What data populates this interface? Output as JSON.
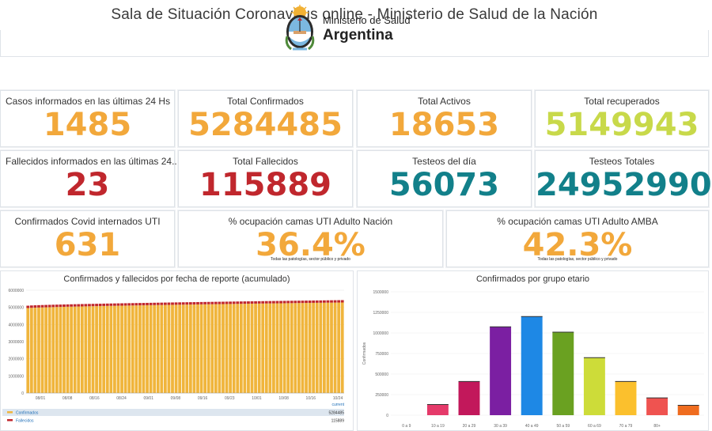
{
  "page": {
    "title": "Sala de Situación Coronavirus online - Ministerio de Salud de la Nación"
  },
  "logo": {
    "line1": "Ministerio de Salud",
    "line2": "Argentina"
  },
  "colors": {
    "orange": "#f2a83b",
    "lime": "#c8d94a",
    "red": "#c0272d",
    "teal": "#12808a",
    "chart_orange": "#f0b53c",
    "chart_red": "#c0272d"
  },
  "kpis": [
    {
      "label": "Casos informados en las últimas 24 Hs",
      "value": "1485",
      "color": "#f2a83b"
    },
    {
      "label": "Total Confirmados",
      "value": "5284485",
      "color": "#f2a83b"
    },
    {
      "label": "Total Activos",
      "value": "18653",
      "color": "#f2a83b"
    },
    {
      "label": "Total recuperados",
      "value": "5149943",
      "color": "#c8d94a"
    },
    {
      "label": "Fallecidos informados en las últimas 24...",
      "value": "23",
      "color": "#c0272d"
    },
    {
      "label": "Total Fallecidos",
      "value": "115889",
      "color": "#c0272d"
    },
    {
      "label": "Testeos del día",
      "value": "56073",
      "color": "#12808a"
    },
    {
      "label": "Testeos Totales",
      "value": "24952990",
      "color": "#12808a"
    },
    {
      "label": "Confirmados Covid internados UTI",
      "value": "631",
      "color": "#f2a83b"
    },
    {
      "label": "% ocupación camas UTI Adulto Nación",
      "value": "36.4%",
      "color": "#f2a83b",
      "note": "Todas las patologías, sector público y privado"
    },
    {
      "label": "% ocupación camas UTI Adulto AMBA",
      "value": "42.3%",
      "color": "#f2a83b",
      "note": "Todas las patologías, sector público y privado"
    }
  ],
  "chart_data": [
    {
      "type": "bar",
      "title": "Confirmados y fallecidos por fecha de reporte (acumulado)",
      "ylim": [
        0,
        6000000
      ],
      "yticks": [
        "0",
        "1000000",
        "2000000",
        "3000000",
        "4000000",
        "5000000",
        "6000000"
      ],
      "xticks": [
        "08/01",
        "08/08",
        "08/16",
        "08/24",
        "09/01",
        "09/08",
        "09/16",
        "09/23",
        "10/01",
        "10/08",
        "10/16",
        "10/24"
      ],
      "current_label": "current",
      "series": [
        {
          "name": "Confirmados",
          "color": "#f0b53c",
          "current": "5284485",
          "start": 4960000,
          "end": 5284485
        },
        {
          "name": "Fallecidos",
          "color": "#c0272d",
          "current": "115889",
          "start": 106000,
          "end": 115889
        }
      ]
    },
    {
      "type": "bar",
      "title": "Confirmados por grupo etario",
      "ylabel": "Confirmados",
      "ylim": [
        0,
        1500000
      ],
      "yticks": [
        "0",
        "250000",
        "500000",
        "750000",
        "1000000",
        "1250000",
        "1500000"
      ],
      "categories": [
        "0 a 9",
        "10 a 19",
        "20 a 29",
        "30 a 39",
        "40 a 49",
        "50 a 59",
        "60 a 69",
        "70 a 79",
        "80+",
        ""
      ],
      "values": [
        0,
        130000,
        410000,
        1075000,
        1200000,
        1010000,
        700000,
        410000,
        210000,
        120000
      ],
      "colors": [
        "#e53a6a",
        "#e53a6a",
        "#c2185b",
        "#7b1fa2",
        "#1e88e5",
        "#6aa121",
        "#cddc39",
        "#fbc02d",
        "#ef5350",
        "#ef6c1f"
      ]
    }
  ]
}
